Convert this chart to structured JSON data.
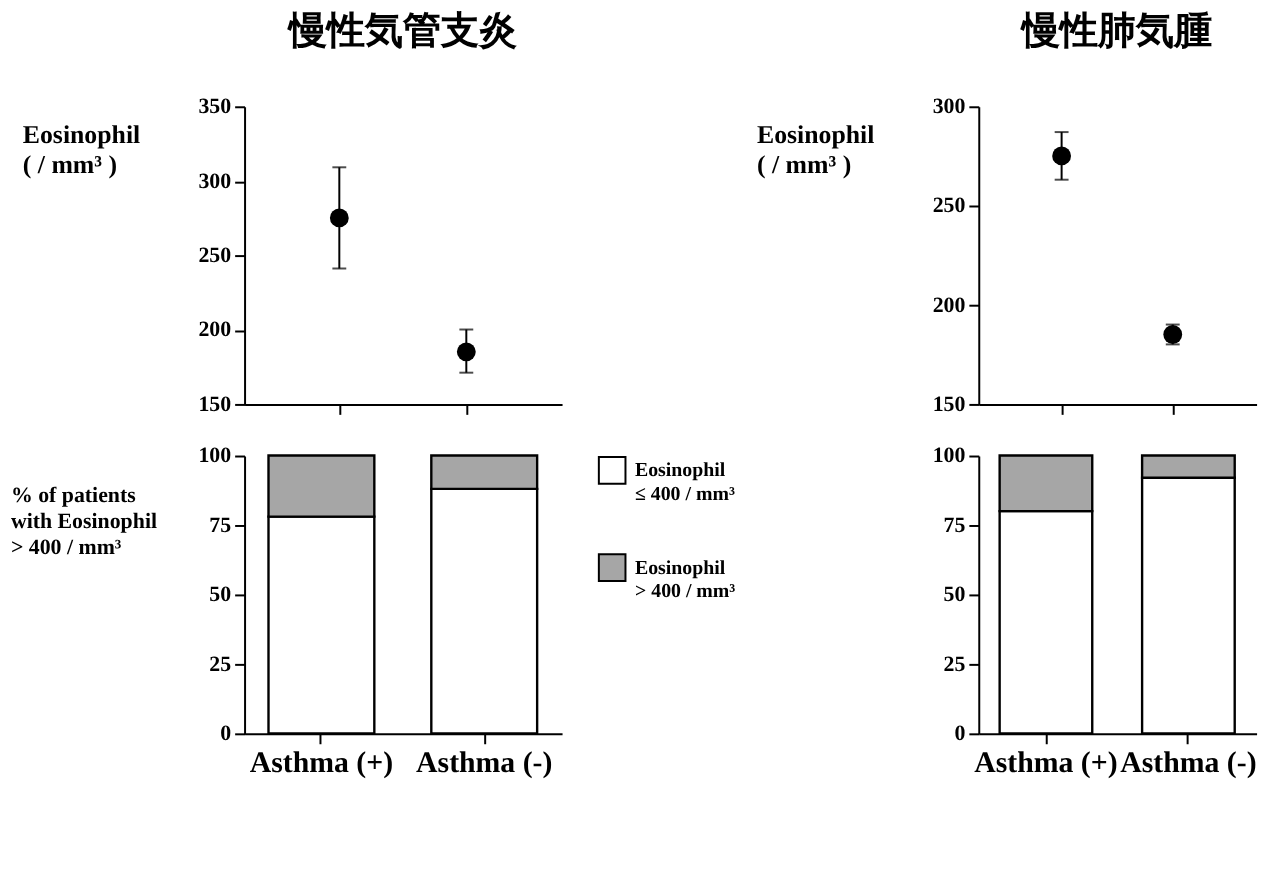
{
  "chart_data": [
    {
      "type": "scatter",
      "title": "慢性気管支炎",
      "ylabel": "Eosinophil\n( / mm³ )",
      "categories": [
        null,
        null
      ],
      "values": [
        275,
        185
      ],
      "errors": [
        [
          241,
          309
        ],
        [
          171,
          200
        ]
      ],
      "color": "#000000",
      "ylim": [
        150,
        350
      ],
      "yticks": [
        150,
        200,
        250,
        300,
        350
      ],
      "marker": "circle",
      "tick_labels": "y"
    },
    {
      "type": "scatter",
      "title": "慢性肺気腫",
      "ylabel": "Eosinophil\n( / mm³ )",
      "categories": [
        null,
        null
      ],
      "values": [
        275,
        185
      ],
      "errors": [
        [
          263,
          287
        ],
        [
          180,
          190
        ]
      ],
      "color": "#000000",
      "ylim": [
        150,
        300
      ],
      "yticks": [
        150,
        200,
        250,
        300
      ],
      "marker": "circle",
      "tick_labels": "y"
    },
    {
      "type": "bar",
      "ylabel": "% of patients\nwith Eosinophil\n> 400 / mm³",
      "categories": [
        "Asthma (+)",
        "Asthma (-)"
      ],
      "stacked": true,
      "series": [
        {
          "name": "Eosinophil\n≤ 400 / mm³",
          "color": "#ffffff",
          "values": [
            78,
            88
          ]
        },
        {
          "name": "Eosinophil\n> 400 / mm³",
          "color": "#a6a6a6",
          "values": [
            22,
            12
          ]
        }
      ],
      "ylim": [
        0,
        100
      ],
      "yticks": [
        0,
        25,
        50,
        75,
        100
      ],
      "legend": "right"
    },
    {
      "type": "bar",
      "categories": [
        "Asthma (+)",
        "Asthma (-)"
      ],
      "stacked": true,
      "series": [
        {
          "color": "#ffffff",
          "values": [
            80,
            92
          ]
        },
        {
          "color": "#a6a6a6",
          "values": [
            20,
            8
          ]
        }
      ],
      "ylim": [
        0,
        100
      ],
      "yticks": [
        0,
        25,
        50,
        75,
        100
      ]
    }
  ]
}
